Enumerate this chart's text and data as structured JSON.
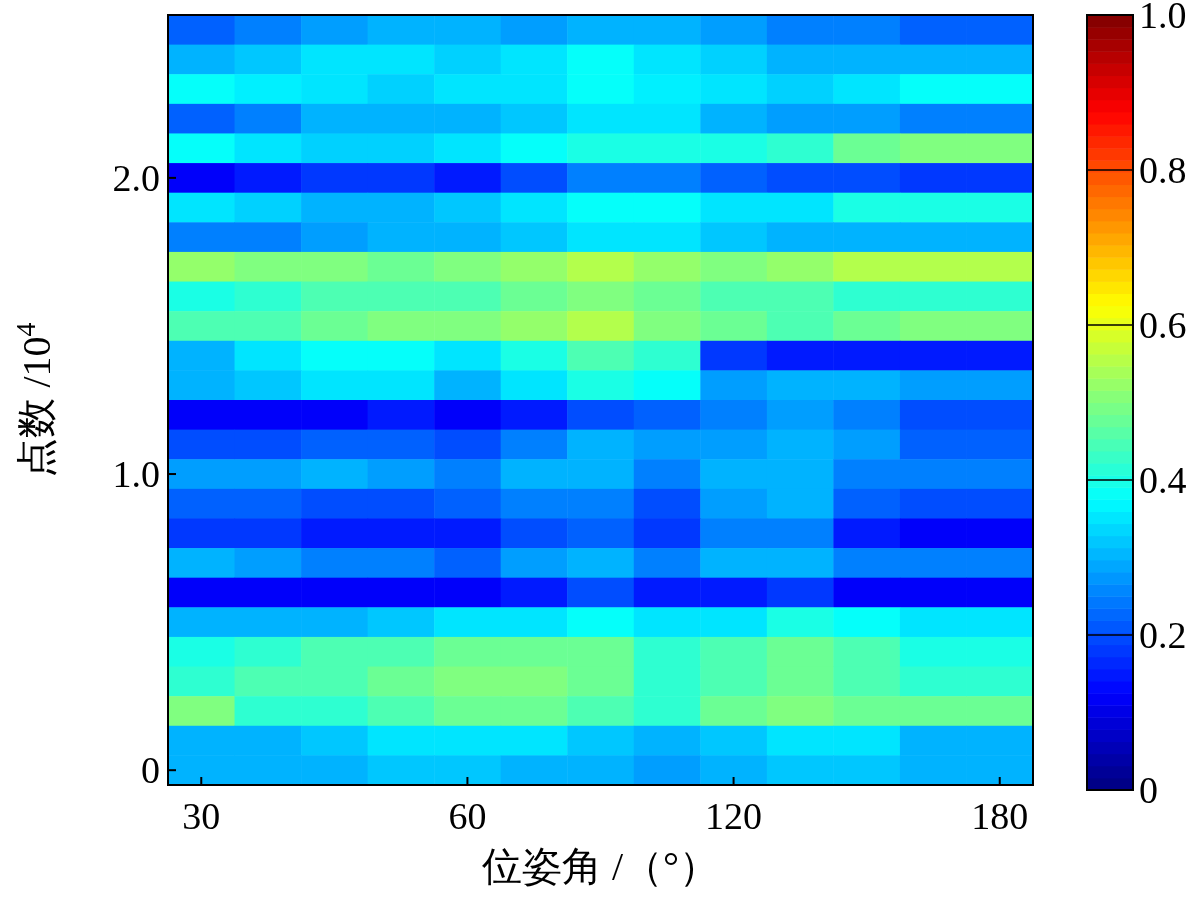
{
  "chart_data": {
    "type": "heatmap",
    "xlabel": "位姿角 /（°）",
    "ylabel": "点数 /10$^{4}$",
    "categories": [
      "30",
      null,
      null,
      null,
      "60",
      null,
      null,
      null,
      "120",
      null,
      null,
      null,
      "180"
    ],
    "y_categories": [
      null,
      null,
      null,
      null,
      null,
      "2.0",
      null,
      null,
      null,
      null,
      null,
      null,
      null,
      null,
      null,
      "1.0",
      null,
      null,
      null,
      null,
      null,
      null,
      null,
      null,
      null,
      "0"
    ],
    "clim": [
      0,
      1
    ],
    "cticks": [
      0,
      0.2,
      0.4,
      0.6,
      0.8,
      {
        "value": 1,
        "label": "1.0"
      }
    ],
    "cells": [
      [
        0.22,
        0.25,
        0.28,
        0.3,
        0.3,
        0.28,
        0.3,
        0.3,
        0.28,
        0.25,
        0.25,
        0.22,
        0.22
      ],
      [
        0.3,
        0.32,
        0.35,
        0.35,
        0.33,
        0.35,
        0.38,
        0.35,
        0.33,
        0.3,
        0.3,
        0.3,
        0.3
      ],
      [
        0.38,
        0.36,
        0.35,
        0.33,
        0.35,
        0.35,
        0.38,
        0.36,
        0.35,
        0.33,
        0.35,
        0.38,
        0.38
      ],
      [
        0.22,
        0.25,
        0.3,
        0.3,
        0.3,
        0.32,
        0.35,
        0.35,
        0.3,
        0.28,
        0.28,
        0.25,
        0.25
      ],
      [
        0.38,
        0.35,
        0.33,
        0.33,
        0.35,
        0.38,
        0.4,
        0.4,
        0.4,
        0.42,
        0.48,
        0.5,
        0.5
      ],
      [
        0.12,
        0.15,
        0.18,
        0.18,
        0.15,
        0.2,
        0.25,
        0.25,
        0.22,
        0.2,
        0.2,
        0.18,
        0.18
      ],
      [
        0.35,
        0.33,
        0.3,
        0.3,
        0.32,
        0.35,
        0.38,
        0.38,
        0.35,
        0.35,
        0.4,
        0.4,
        0.4
      ],
      [
        0.25,
        0.25,
        0.28,
        0.3,
        0.3,
        0.32,
        0.35,
        0.35,
        0.32,
        0.3,
        0.3,
        0.3,
        0.3
      ],
      [
        0.52,
        0.5,
        0.5,
        0.48,
        0.5,
        0.52,
        0.55,
        0.52,
        0.5,
        0.52,
        0.55,
        0.55,
        0.55
      ],
      [
        0.4,
        0.42,
        0.45,
        0.45,
        0.45,
        0.48,
        0.5,
        0.48,
        0.45,
        0.45,
        0.42,
        0.42,
        0.42
      ],
      [
        0.45,
        0.45,
        0.48,
        0.5,
        0.5,
        0.52,
        0.55,
        0.5,
        0.48,
        0.45,
        0.48,
        0.5,
        0.5
      ],
      [
        0.3,
        0.35,
        0.38,
        0.38,
        0.35,
        0.4,
        0.45,
        0.42,
        0.18,
        0.15,
        0.15,
        0.15,
        0.15
      ],
      [
        0.3,
        0.32,
        0.35,
        0.35,
        0.3,
        0.35,
        0.4,
        0.38,
        0.28,
        0.3,
        0.3,
        0.28,
        0.28
      ],
      [
        0.12,
        0.12,
        0.12,
        0.15,
        0.12,
        0.15,
        0.2,
        0.22,
        0.25,
        0.28,
        0.25,
        0.2,
        0.2
      ],
      [
        0.2,
        0.2,
        0.22,
        0.22,
        0.2,
        0.25,
        0.3,
        0.28,
        0.28,
        0.3,
        0.28,
        0.22,
        0.22
      ],
      [
        0.28,
        0.28,
        0.3,
        0.28,
        0.25,
        0.3,
        0.3,
        0.25,
        0.3,
        0.3,
        0.25,
        0.25,
        0.25
      ],
      [
        0.22,
        0.22,
        0.2,
        0.2,
        0.22,
        0.25,
        0.25,
        0.2,
        0.28,
        0.3,
        0.22,
        0.2,
        0.2
      ],
      [
        0.18,
        0.18,
        0.15,
        0.15,
        0.15,
        0.2,
        0.22,
        0.18,
        0.25,
        0.25,
        0.15,
        0.12,
        0.12
      ],
      [
        0.3,
        0.28,
        0.25,
        0.25,
        0.22,
        0.28,
        0.3,
        0.25,
        0.3,
        0.3,
        0.25,
        0.25,
        0.25
      ],
      [
        0.12,
        0.12,
        0.12,
        0.12,
        0.12,
        0.15,
        0.2,
        0.15,
        0.15,
        0.18,
        0.12,
        0.12,
        0.12
      ],
      [
        0.3,
        0.3,
        0.3,
        0.32,
        0.35,
        0.35,
        0.38,
        0.35,
        0.35,
        0.4,
        0.38,
        0.35,
        0.35
      ],
      [
        0.4,
        0.42,
        0.45,
        0.45,
        0.48,
        0.48,
        0.48,
        0.42,
        0.45,
        0.48,
        0.45,
        0.4,
        0.4
      ],
      [
        0.42,
        0.45,
        0.45,
        0.48,
        0.5,
        0.5,
        0.48,
        0.42,
        0.45,
        0.48,
        0.45,
        0.42,
        0.42
      ],
      [
        0.5,
        0.42,
        0.42,
        0.45,
        0.48,
        0.48,
        0.45,
        0.42,
        0.48,
        0.5,
        0.48,
        0.48,
        0.48
      ],
      [
        0.3,
        0.3,
        0.32,
        0.35,
        0.35,
        0.35,
        0.32,
        0.3,
        0.32,
        0.35,
        0.35,
        0.3,
        0.3
      ],
      [
        0.3,
        0.3,
        0.3,
        0.32,
        0.32,
        0.3,
        0.3,
        0.28,
        0.3,
        0.32,
        0.32,
        0.3,
        0.3
      ]
    ]
  }
}
